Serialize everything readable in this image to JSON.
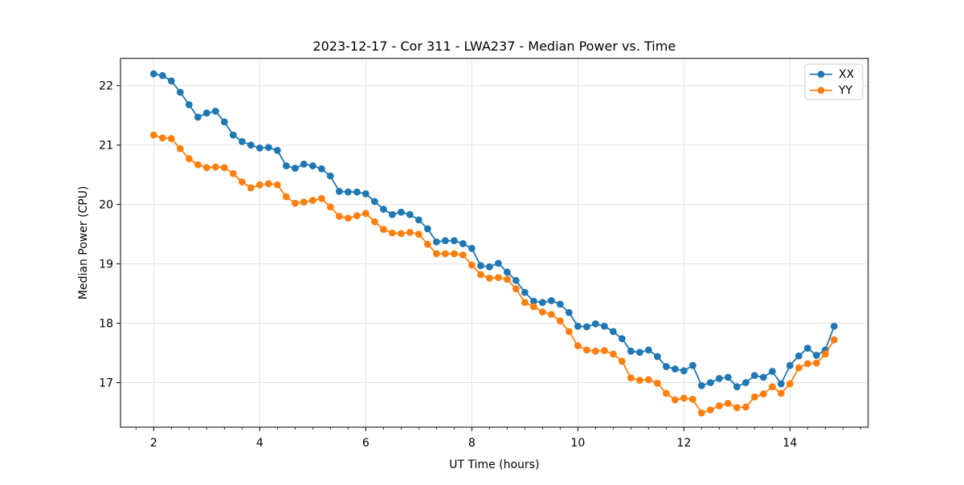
{
  "chart_data": {
    "type": "line",
    "title": "2023-12-17 - Cor 311 - LWA237 - Median Power vs. Time",
    "xlabel": "UT Time (hours)",
    "ylabel": "Median Power (CPU)",
    "xlim": [
      1.374,
      15.475
    ],
    "ylim": [
      16.25,
      22.46
    ],
    "x_major_ticks": [
      2,
      4,
      6,
      8,
      10,
      12,
      14
    ],
    "x_minor_step": 0.3333,
    "y_major_ticks": [
      17,
      18,
      19,
      20,
      21,
      22
    ],
    "grid": true,
    "grid_color": "#e2e2e2",
    "legend_position": "upper right",
    "marker": "circle",
    "x": [
      2.0,
      2.167,
      2.333,
      2.5,
      2.667,
      2.833,
      3.0,
      3.167,
      3.333,
      3.5,
      3.667,
      3.833,
      4.0,
      4.167,
      4.333,
      4.5,
      4.667,
      4.833,
      5.0,
      5.167,
      5.333,
      5.5,
      5.667,
      5.833,
      6.0,
      6.167,
      6.333,
      6.5,
      6.667,
      6.833,
      7.0,
      7.167,
      7.333,
      7.5,
      7.667,
      7.833,
      8.0,
      8.167,
      8.333,
      8.5,
      8.667,
      8.833,
      9.0,
      9.167,
      9.333,
      9.5,
      9.667,
      9.833,
      10.0,
      10.167,
      10.333,
      10.5,
      10.667,
      10.833,
      11.0,
      11.167,
      11.333,
      11.5,
      11.667,
      11.833,
      12.0,
      12.167,
      12.333,
      12.5,
      12.667,
      12.833,
      13.0,
      13.167,
      13.333,
      13.5,
      13.667,
      13.833,
      14.0,
      14.167,
      14.333,
      14.5,
      14.667,
      14.833
    ],
    "series": [
      {
        "name": "XX",
        "color": "#1f77b4",
        "values": [
          22.2,
          22.17,
          22.08,
          21.89,
          21.68,
          21.47,
          21.54,
          21.57,
          21.39,
          21.17,
          21.06,
          21.0,
          20.95,
          20.96,
          20.91,
          20.65,
          20.61,
          20.68,
          20.65,
          20.6,
          20.48,
          20.22,
          20.21,
          20.21,
          20.18,
          20.05,
          19.92,
          19.83,
          19.87,
          19.83,
          19.74,
          19.59,
          19.37,
          19.39,
          19.39,
          19.34,
          19.26,
          18.97,
          18.95,
          19.01,
          18.86,
          18.72,
          18.52,
          18.37,
          18.35,
          18.38,
          18.32,
          18.18,
          17.95,
          17.94,
          17.99,
          17.95,
          17.86,
          17.74,
          17.53,
          17.51,
          17.55,
          17.44,
          17.27,
          17.23,
          17.2,
          17.29,
          16.95,
          17.0,
          17.07,
          17.09,
          16.93,
          17.0,
          17.12,
          17.09,
          17.19,
          16.98,
          17.29,
          17.45,
          17.58,
          17.46,
          17.55,
          17.95
        ]
      },
      {
        "name": "YY",
        "color": "#ff7f0e",
        "values": [
          21.17,
          21.12,
          21.11,
          20.94,
          20.77,
          20.67,
          20.62,
          20.63,
          20.62,
          20.52,
          20.38,
          20.28,
          20.33,
          20.35,
          20.33,
          20.13,
          20.02,
          20.04,
          20.07,
          20.1,
          19.96,
          19.8,
          19.77,
          19.81,
          19.85,
          19.71,
          19.58,
          19.52,
          19.51,
          19.53,
          19.5,
          19.33,
          19.17,
          19.17,
          19.17,
          19.15,
          18.98,
          18.82,
          18.76,
          18.77,
          18.74,
          18.58,
          18.35,
          18.28,
          18.19,
          18.15,
          18.04,
          17.86,
          17.62,
          17.55,
          17.53,
          17.54,
          17.48,
          17.36,
          17.08,
          17.04,
          17.05,
          16.99,
          16.82,
          16.71,
          16.74,
          16.72,
          16.49,
          16.54,
          16.61,
          16.65,
          16.58,
          16.59,
          16.76,
          16.81,
          16.93,
          16.82,
          16.98,
          17.25,
          17.32,
          17.33,
          17.48,
          17.72
        ]
      }
    ]
  },
  "legend": {
    "items": [
      {
        "label": "XX"
      },
      {
        "label": "YY"
      }
    ]
  }
}
